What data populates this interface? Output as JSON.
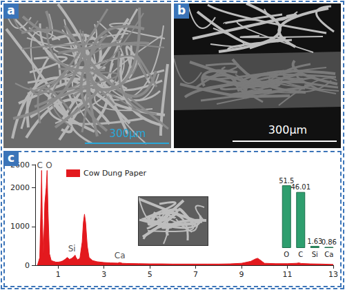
{
  "panels": {
    "a": {
      "label": "a",
      "scale_bar": "300μm"
    },
    "b": {
      "label": "b",
      "scale_bar": "300μm"
    },
    "c": {
      "label": "c"
    }
  },
  "chart_data": [
    {
      "type": "area",
      "x": [
        0.1,
        0.2,
        0.25,
        0.28,
        0.31,
        0.36,
        0.42,
        0.48,
        0.52,
        0.56,
        0.62,
        0.7,
        0.8,
        0.9,
        1.0,
        1.1,
        1.2,
        1.3,
        1.4,
        1.5,
        1.6,
        1.7,
        1.74,
        1.78,
        1.85,
        1.95,
        2.05,
        2.1,
        2.15,
        2.2,
        2.27,
        2.35,
        2.5,
        2.7,
        3.0,
        3.3,
        3.6,
        3.69,
        3.8,
        4.0,
        4.5,
        5,
        5.5,
        6,
        6.5,
        7,
        7.5,
        8,
        8.5,
        9,
        9.4,
        9.6,
        9.7,
        9.8,
        10,
        10.5,
        11,
        11.4,
        11.5,
        11.6,
        12,
        12.5,
        13
      ],
      "series": [
        {
          "name": "Cow Dung Paper",
          "color": "#e3191e",
          "values": [
            0,
            200,
            1500,
            2450,
            1200,
            300,
            1600,
            2000,
            2450,
            1400,
            300,
            120,
            100,
            80,
            80,
            90,
            110,
            150,
            200,
            150,
            180,
            230,
            260,
            200,
            140,
            180,
            600,
            1100,
            1320,
            1100,
            500,
            200,
            120,
            90,
            70,
            60,
            55,
            70,
            50,
            45,
            40,
            35,
            35,
            30,
            30,
            30,
            30,
            30,
            35,
            50,
            100,
            160,
            180,
            140,
            50,
            40,
            40,
            50,
            60,
            45,
            35,
            30,
            20
          ]
        }
      ],
      "xlim": [
        0,
        13
      ],
      "xticks": [
        1,
        3,
        5,
        7,
        9,
        11,
        13
      ],
      "ylim": [
        0,
        2600
      ],
      "yticks": [
        0,
        1000,
        2000
      ],
      "annotations": [
        {
          "text": "C",
          "x": 0.2,
          "y": 2450
        },
        {
          "text": "O",
          "x": 0.6,
          "y": 2450
        },
        {
          "text": "Si",
          "x": 1.6,
          "y": 300
        },
        {
          "text": "Ca",
          "x": 3.69,
          "y": 120
        }
      ],
      "legend": "upper left"
    },
    {
      "type": "bar",
      "categories": [
        "O",
        "C",
        "Si",
        "Ca"
      ],
      "values": [
        51.5,
        46.01,
        1.63,
        0.86
      ],
      "color": "#2e9e6e",
      "data_labels": true,
      "tick_labels": "x"
    }
  ]
}
